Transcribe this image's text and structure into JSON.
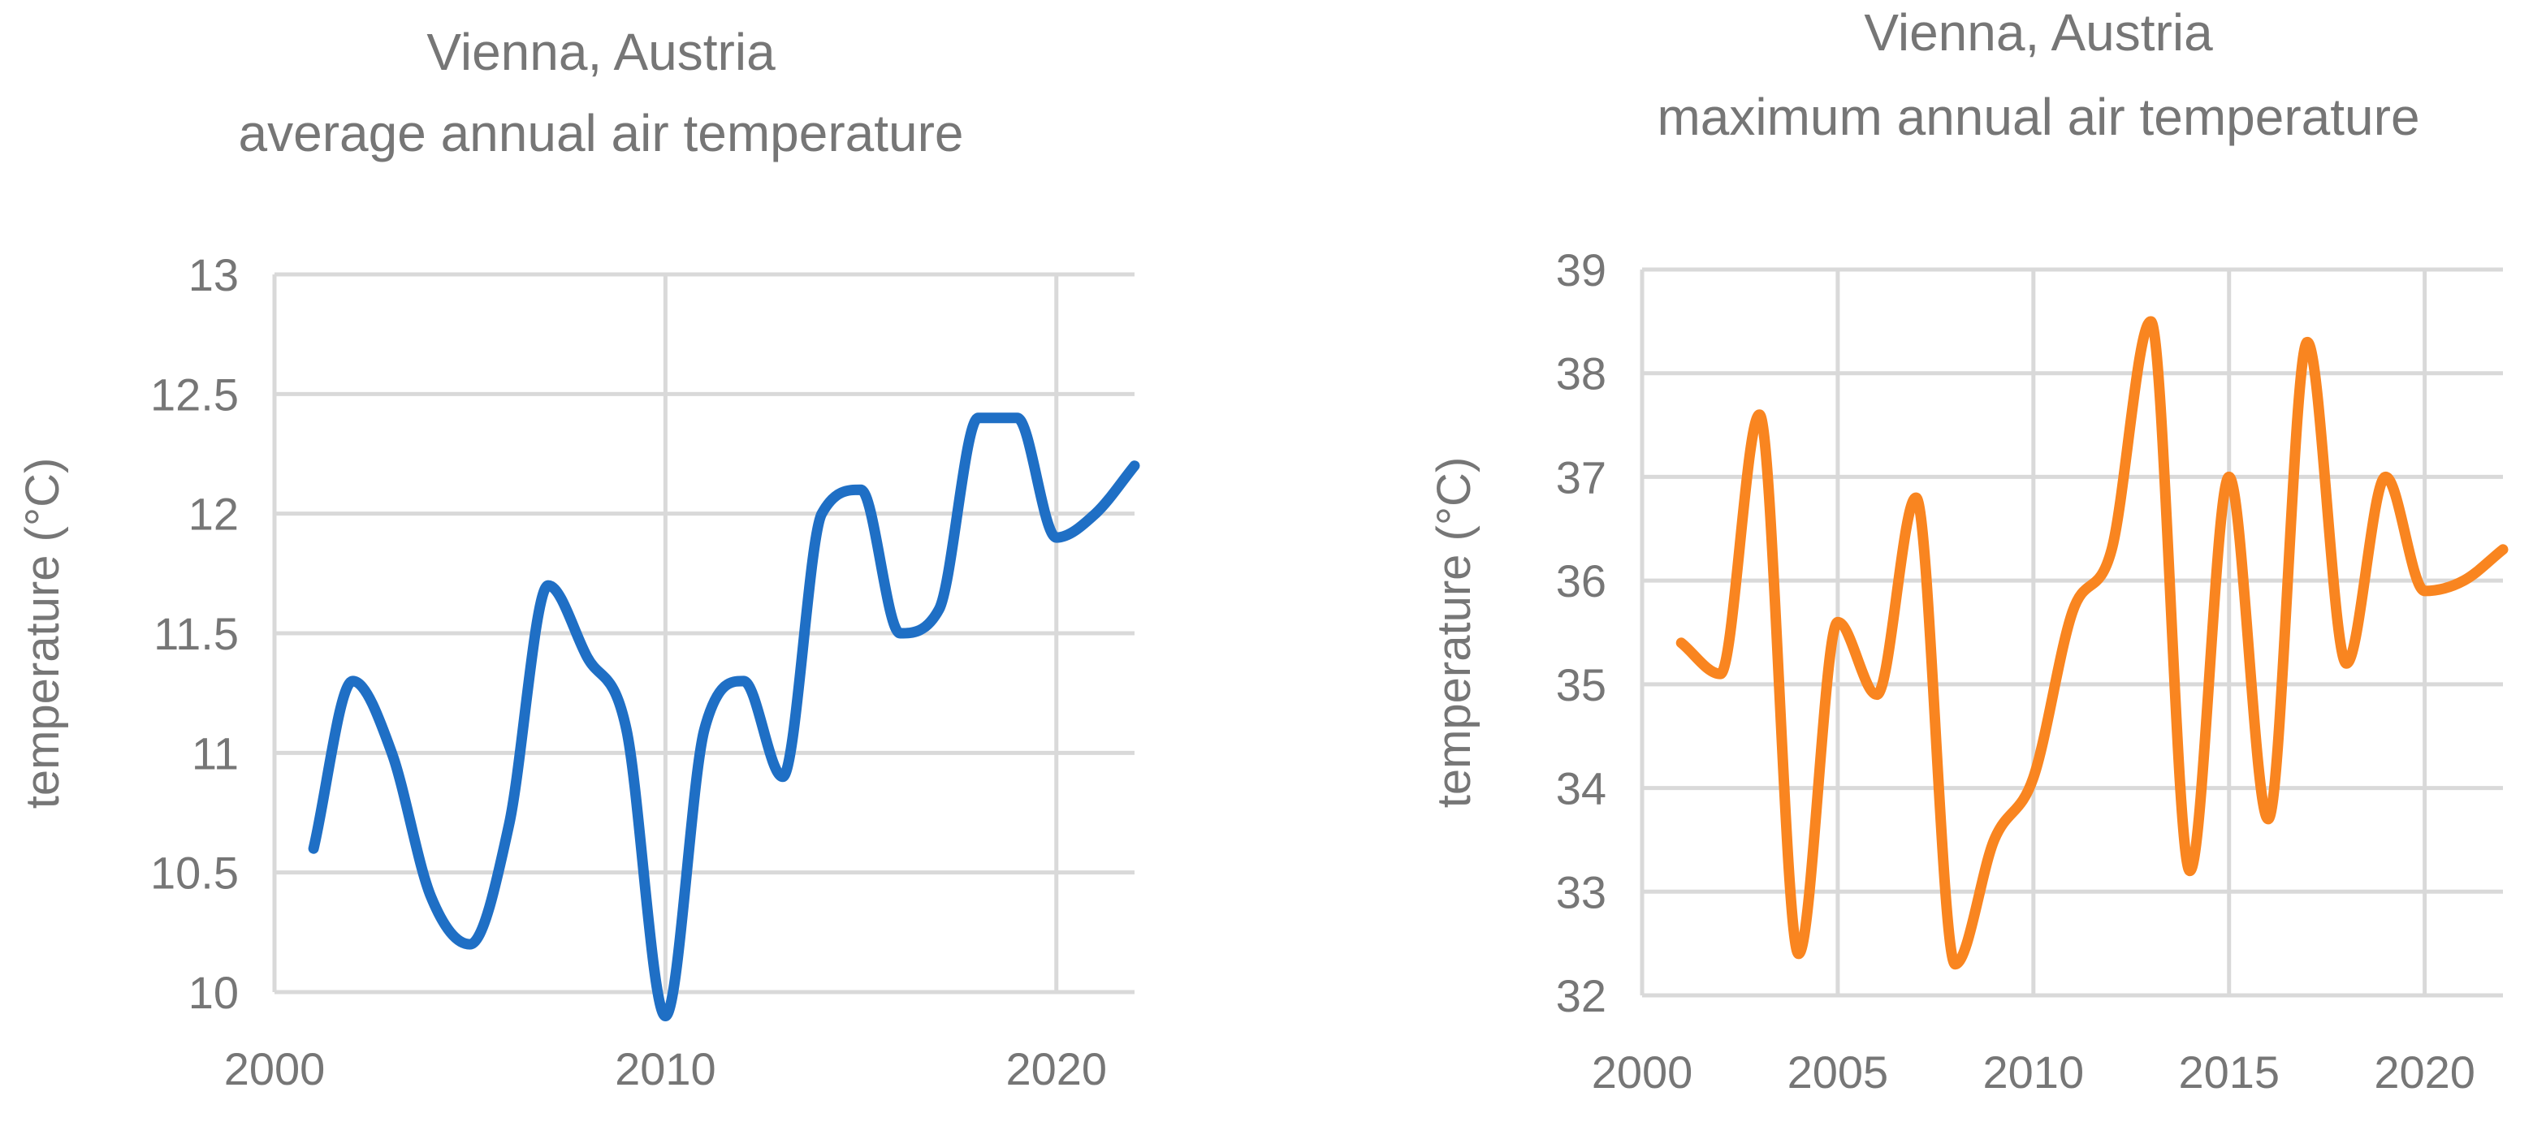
{
  "chart_data": [
    {
      "type": "line",
      "title": [
        "Vienna, Austria",
        "average annual air temperature"
      ],
      "xlabel": "",
      "ylabel": "temperature (°C)",
      "xlim": [
        2000,
        2022
      ],
      "ylim": [
        10,
        13
      ],
      "xticks": [
        2000,
        2010,
        2020
      ],
      "yticks": [
        10,
        10.5,
        11,
        11.5,
        12,
        12.5,
        13
      ],
      "ytick_labels": [
        "10",
        "10.5",
        "11",
        "11.5",
        "12",
        "12.5",
        "13"
      ],
      "grid": true,
      "smooth": true,
      "color": "#1f6fc5",
      "series": [
        {
          "name": "average annual air temperature",
          "x": [
            2001,
            2002,
            2003,
            2004,
            2005,
            2006,
            2007,
            2008,
            2009,
            2010,
            2011,
            2012,
            2013,
            2014,
            2015,
            2016,
            2017,
            2018,
            2019,
            2020,
            2021,
            2022
          ],
          "values": [
            10.6,
            11.3,
            11.0,
            10.4,
            10.2,
            10.7,
            11.7,
            11.4,
            11.1,
            9.9,
            11.1,
            11.3,
            10.9,
            12.0,
            12.1,
            11.5,
            11.6,
            12.4,
            12.4,
            11.9,
            12.0,
            12.2
          ]
        }
      ]
    },
    {
      "type": "line",
      "title": [
        "Vienna, Austria",
        "maximum annual air temperature"
      ],
      "xlabel": "",
      "ylabel": "temperature (°C)",
      "xlim": [
        2000,
        2022
      ],
      "ylim": [
        32,
        39
      ],
      "xticks": [
        2000,
        2005,
        2010,
        2015,
        2020
      ],
      "yticks": [
        32,
        33,
        34,
        35,
        36,
        37,
        38,
        39
      ],
      "ytick_labels": [
        "32",
        "33",
        "34",
        "35",
        "36",
        "37",
        "38",
        "39"
      ],
      "grid": true,
      "smooth": true,
      "color": "#f98520",
      "series": [
        {
          "name": "maximum annual air temperature",
          "x": [
            2001,
            2002,
            2003,
            2004,
            2005,
            2006,
            2007,
            2008,
            2009,
            2010,
            2011,
            2012,
            2013,
            2014,
            2015,
            2016,
            2017,
            2018,
            2019,
            2020,
            2021,
            2022
          ],
          "values": [
            35.4,
            35.1,
            37.6,
            32.4,
            35.6,
            34.9,
            36.8,
            32.3,
            33.5,
            34.1,
            35.7,
            36.3,
            38.5,
            33.2,
            37.0,
            33.7,
            38.3,
            35.2,
            37.0,
            35.9,
            36.0,
            36.3
          ]
        }
      ]
    }
  ]
}
